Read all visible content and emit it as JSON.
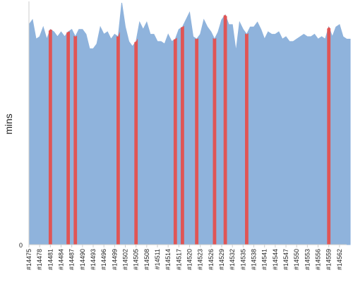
{
  "chart_data": {
    "type": "area",
    "xlabel": "",
    "ylabel": "mins",
    "ylim": [
      0,
      100
    ],
    "yticks": [
      "0"
    ],
    "legend": "none",
    "grid": false,
    "colors": {
      "area": "#8fb3dc",
      "area_line": "#8fb3dc",
      "highlight": "#e05555",
      "axis": "#cccccc"
    },
    "x_tick_labels": [
      "#14475",
      "#14478",
      "#14481",
      "#14484",
      "#14487",
      "#14490",
      "#14493",
      "#14496",
      "#14499",
      "#14502",
      "#14505",
      "#14508",
      "#14511",
      "#14514",
      "#14517",
      "#14520",
      "#14523",
      "#14526",
      "#14529",
      "#14532",
      "#14535",
      "#14538",
      "#14541",
      "#14544",
      "#14547",
      "#14550",
      "#14553",
      "#14556",
      "#14559",
      "#14562"
    ],
    "x_start": 14475,
    "x_end": 14564,
    "series": [
      {
        "values": [
          91,
          93,
          85,
          86,
          90,
          85,
          89,
          88,
          86,
          88,
          86,
          88,
          89,
          86,
          89,
          89,
          87,
          81,
          81,
          83,
          90,
          87,
          88,
          85,
          87,
          86,
          100,
          90,
          84,
          82,
          84,
          92,
          89,
          92,
          87,
          87,
          84,
          84,
          83,
          87,
          84,
          85,
          89,
          90,
          93,
          96,
          86,
          85,
          87,
          93,
          90,
          88,
          85,
          88,
          93,
          95,
          91,
          91,
          80,
          92,
          89,
          87,
          90,
          90,
          92,
          89,
          85,
          88,
          87,
          87,
          88,
          85,
          86,
          84,
          84,
          85,
          86,
          87,
          86,
          86,
          87,
          85,
          86,
          85,
          90,
          86,
          90,
          91,
          86,
          85,
          85
        ]
      }
    ],
    "highlighted_builds": [
      "#14481",
      "#14486",
      "#14488",
      "#14500",
      "#14505",
      "#14516",
      "#14518",
      "#14522",
      "#14527",
      "#14530",
      "#14536",
      "#14559"
    ]
  }
}
